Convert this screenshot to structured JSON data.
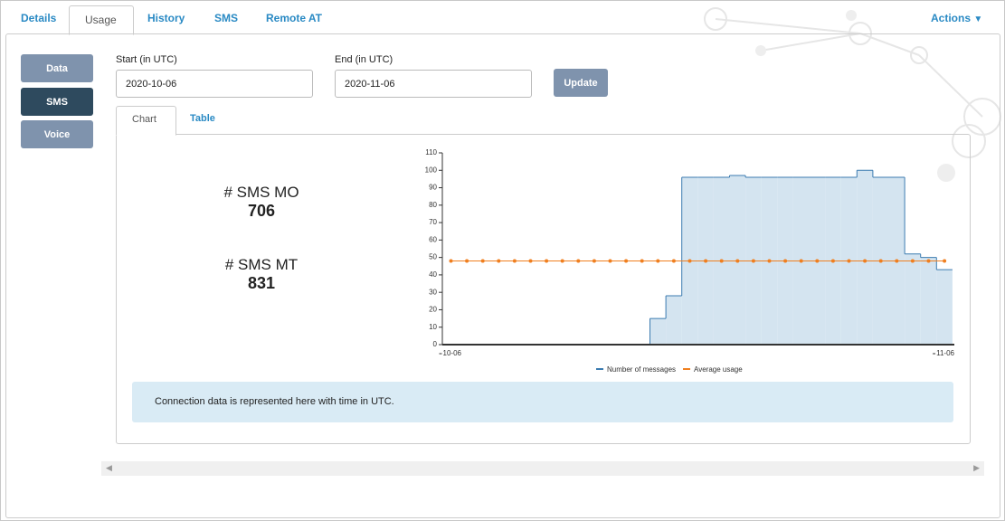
{
  "tabs": [
    "Details",
    "Usage",
    "History",
    "SMS",
    "Remote AT"
  ],
  "actions": "Actions",
  "side_buttons": [
    "Data",
    "SMS",
    "Voice"
  ],
  "form": {
    "start_label": "Start (in UTC)",
    "start_value": "2020-10-06",
    "end_label": "End (in UTC)",
    "end_value": "2020-11-06",
    "update": "Update"
  },
  "view_tabs": [
    "Chart",
    "Table"
  ],
  "stats": [
    {
      "label": "# SMS MO",
      "value": 706
    },
    {
      "label": "# SMS MT",
      "value": 831
    }
  ],
  "chart_data": {
    "type": "step-area",
    "categories": [
      "10-06",
      null,
      null,
      null,
      null,
      null,
      null,
      null,
      null,
      null,
      null,
      null,
      null,
      null,
      null,
      null,
      null,
      null,
      null,
      null,
      null,
      null,
      null,
      null,
      null,
      null,
      null,
      null,
      null,
      null,
      null,
      "11-06"
    ],
    "series": [
      {
        "name": "Number of messages",
        "color": "#3b7bb0",
        "fill": "#d4e4f0",
        "values": [
          0,
          0,
          0,
          0,
          0,
          0,
          0,
          0,
          0,
          0,
          0,
          0,
          0,
          15,
          28,
          96,
          96,
          96,
          97,
          96,
          96,
          96,
          96,
          96,
          96,
          96,
          100,
          96,
          96,
          52,
          50,
          43
        ]
      },
      {
        "name": "Average usage",
        "color": "#f07f1f",
        "values": [
          48,
          48,
          48,
          48,
          48,
          48,
          48,
          48,
          48,
          48,
          48,
          48,
          48,
          48,
          48,
          48,
          48,
          48,
          48,
          48,
          48,
          48,
          48,
          48,
          48,
          48,
          48,
          48,
          48,
          48,
          48,
          48
        ]
      }
    ],
    "ylim": [
      0,
      110
    ],
    "yticks": [
      0,
      10,
      20,
      30,
      40,
      50,
      60,
      70,
      80,
      90,
      100,
      110
    ]
  },
  "info": "Connection data is represented here with time in UTC."
}
